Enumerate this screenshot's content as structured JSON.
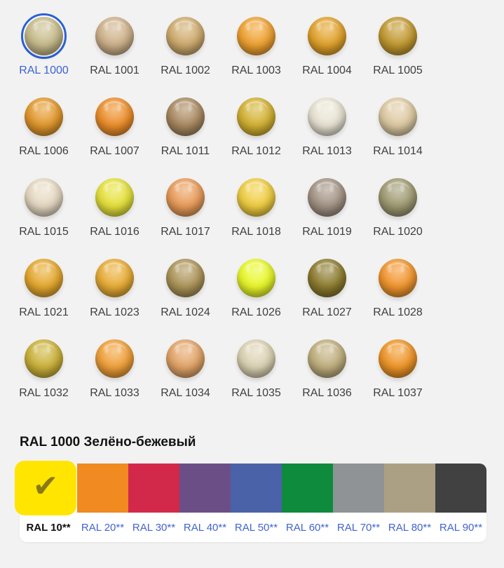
{
  "page": {
    "background": "#F2F2F2"
  },
  "palette_grid": {
    "items": [
      {
        "code": "RAL 1000",
        "color": "#C8BD8D",
        "selected": true
      },
      {
        "code": "RAL 1001",
        "color": "#CFB38B",
        "selected": false
      },
      {
        "code": "RAL 1002",
        "color": "#CFAC6E",
        "selected": false
      },
      {
        "code": "RAL 1003",
        "color": "#F0A231",
        "selected": false
      },
      {
        "code": "RAL 1004",
        "color": "#E2A32B",
        "selected": false
      },
      {
        "code": "RAL 1005",
        "color": "#C39A31",
        "selected": false
      },
      {
        "code": "RAL 1006",
        "color": "#E3992D",
        "selected": false
      },
      {
        "code": "RAL 1007",
        "color": "#ED8F2B",
        "selected": false
      },
      {
        "code": "RAL 1011",
        "color": "#AA8A62",
        "selected": false
      },
      {
        "code": "RAL 1012",
        "color": "#D4B233",
        "selected": false
      },
      {
        "code": "RAL 1013",
        "color": "#E9E4D4",
        "selected": false
      },
      {
        "code": "RAL 1014",
        "color": "#DFCBA4",
        "selected": false
      },
      {
        "code": "RAL 1015",
        "color": "#E7DAC3",
        "selected": false
      },
      {
        "code": "RAL 1016",
        "color": "#E6E23C",
        "selected": false
      },
      {
        "code": "RAL 1017",
        "color": "#E99C5A",
        "selected": false
      },
      {
        "code": "RAL 1018",
        "color": "#F0CE41",
        "selected": false
      },
      {
        "code": "RAL 1019",
        "color": "#A49486",
        "selected": false
      },
      {
        "code": "RAL 1020",
        "color": "#A09B73",
        "selected": false
      },
      {
        "code": "RAL 1021",
        "color": "#E6A92F",
        "selected": false
      },
      {
        "code": "RAL 1023",
        "color": "#E9AD36",
        "selected": false
      },
      {
        "code": "RAL 1024",
        "color": "#AD9559",
        "selected": false
      },
      {
        "code": "RAL 1026",
        "color": "#E9F829",
        "selected": false
      },
      {
        "code": "RAL 1027",
        "color": "#8D7C2F",
        "selected": false
      },
      {
        "code": "RAL 1028",
        "color": "#F2962E",
        "selected": false
      },
      {
        "code": "RAL 1032",
        "color": "#CCB23A",
        "selected": false
      },
      {
        "code": "RAL 1033",
        "color": "#F0A039",
        "selected": false
      },
      {
        "code": "RAL 1034",
        "color": "#E3A468",
        "selected": false
      },
      {
        "code": "RAL 1035",
        "color": "#DCD3B4",
        "selected": false
      },
      {
        "code": "RAL 1036",
        "color": "#C0AF7E",
        "selected": false
      },
      {
        "code": "RAL 1037",
        "color": "#EF9527",
        "selected": false
      }
    ]
  },
  "detail": {
    "heading": "RAL 1000 Зелёно-бежевый",
    "check_icon": "✔",
    "groups": [
      {
        "label": "RAL 10**",
        "color": "#FFE500",
        "selected": true
      },
      {
        "label": "RAL 20**",
        "color": "#F08A21",
        "selected": false
      },
      {
        "label": "RAL 30**",
        "color": "#D2294B",
        "selected": false
      },
      {
        "label": "RAL 40**",
        "color": "#6C4E87",
        "selected": false
      },
      {
        "label": "RAL 50**",
        "color": "#4A62A8",
        "selected": false
      },
      {
        "label": "RAL 60**",
        "color": "#0E8B3D",
        "selected": false
      },
      {
        "label": "RAL 70**",
        "color": "#8F9396",
        "selected": false
      },
      {
        "label": "RAL 80**",
        "color": "#ABA083",
        "selected": false
      },
      {
        "label": "RAL 90**",
        "color": "#414141",
        "selected": false
      }
    ]
  },
  "colors": {
    "ring_blue": "#2A62D6",
    "link_blue": "#4263D1",
    "selected_label_blue": "#3C62D3",
    "label_dark": "#3E3E3E",
    "check_olive": "#7E7119"
  }
}
